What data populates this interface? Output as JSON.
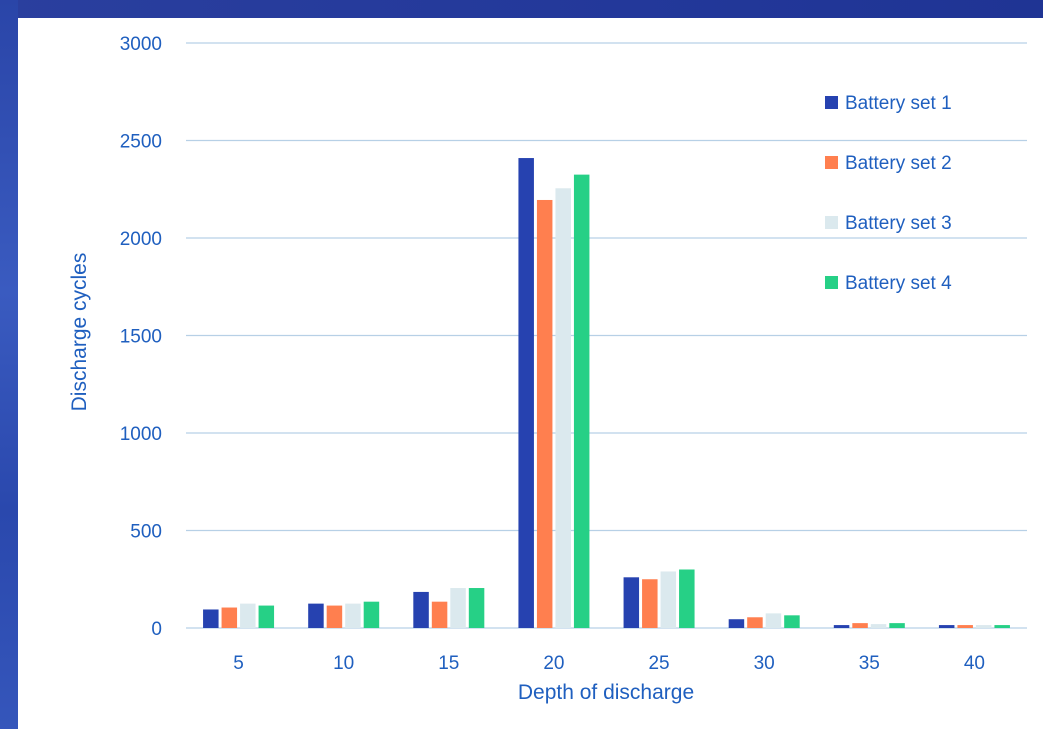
{
  "colors": {
    "frame": "#2a43a5",
    "grid": "#b7d0e6",
    "axis_text": "#1f5fbf"
  },
  "chart_data": {
    "type": "bar",
    "title": "",
    "xlabel": "Depth of discharge",
    "ylabel": "Discharge cycles",
    "categories": [
      "5",
      "10",
      "15",
      "20",
      "25",
      "30",
      "35",
      "40"
    ],
    "ylim": [
      0,
      3000
    ],
    "yticks": [
      "0",
      "500",
      "1000",
      "1500",
      "2000",
      "2500",
      "3000"
    ],
    "grid": true,
    "legend_position": "top-right",
    "series": [
      {
        "name": "Battery set 1",
        "color": "#2642b0",
        "values": [
          95,
          125,
          185,
          2410,
          260,
          45,
          15,
          15
        ]
      },
      {
        "name": "Battery set 2",
        "color": "#ff7f4f",
        "values": [
          105,
          115,
          135,
          2195,
          250,
          55,
          25,
          15
        ]
      },
      {
        "name": "Battery set 3",
        "color": "#dbe9ee",
        "values": [
          125,
          125,
          205,
          2255,
          290,
          75,
          20,
          15
        ]
      },
      {
        "name": "Battery set 4",
        "color": "#26d086",
        "values": [
          115,
          135,
          205,
          2325,
          300,
          65,
          25,
          15
        ]
      }
    ]
  }
}
